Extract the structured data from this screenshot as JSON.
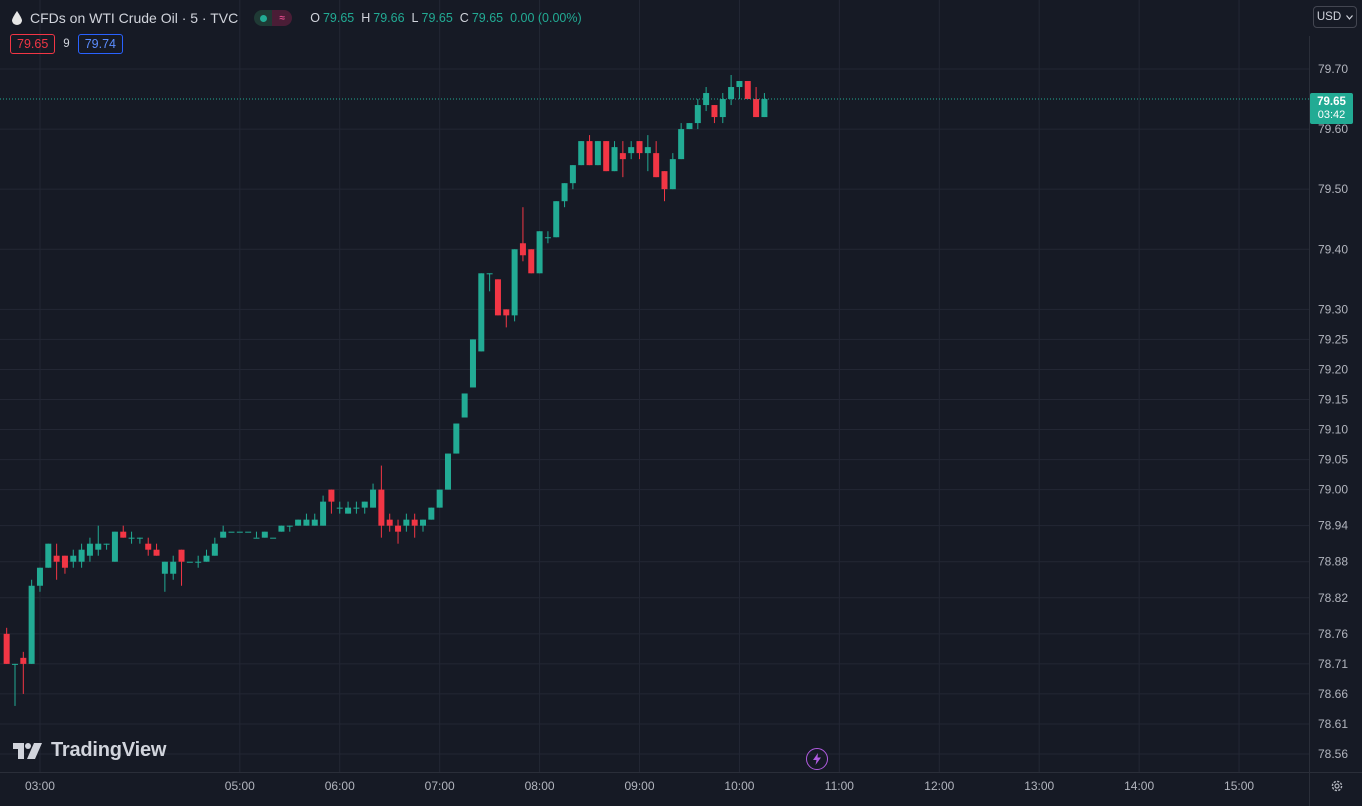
{
  "header": {
    "symbol_title": "CFDs on WTI Crude Oil · 5 · TVC",
    "ohlc": [
      {
        "key": "O",
        "value": "79.65"
      },
      {
        "key": "H",
        "value": "79.66"
      },
      {
        "key": "L",
        "value": "79.65"
      },
      {
        "key": "C",
        "value": "79.65"
      }
    ],
    "change": "0.00 (0.00%)",
    "status_badge_glyph": "≈"
  },
  "bid_ask": {
    "bid": "79.65",
    "spread": "9",
    "ask": "79.74"
  },
  "currency": {
    "label": "USD"
  },
  "price_tag": {
    "price": "79.65",
    "countdown": "03:42"
  },
  "logo": {
    "text": "TradingView"
  },
  "icons": {
    "symbol": "oil-drop-icon",
    "lightning": "lightning-icon",
    "settings": "gear-icon",
    "currency_chevron": "chevron-down-icon"
  },
  "colors": {
    "background": "#161a25",
    "up": "#22ab94",
    "down": "#f23645",
    "grid": "#232734",
    "text": "#b2b5be",
    "ask": "#2962ff"
  },
  "chart_data": {
    "type": "candlestick",
    "symbol": "CFDs on WTI Crude Oil",
    "interval": "5",
    "y_ticks": [
      "79.70",
      "79.60",
      "79.50",
      "79.40",
      "79.30",
      "79.25",
      "79.20",
      "79.15",
      "79.10",
      "79.05",
      "79.00",
      "78.94",
      "78.88",
      "78.82",
      "78.76",
      "78.71",
      "78.66",
      "78.61",
      "78.56"
    ],
    "y_range": [
      78.52,
      79.77
    ],
    "x_ticks": [
      "03:00",
      "05:00",
      "06:00",
      "07:00",
      "08:00",
      "09:00",
      "10:00",
      "11:00",
      "12:00",
      "13:00",
      "14:00",
      "15:00"
    ],
    "x_range": [
      "02:36",
      "15:42"
    ],
    "last_price": 79.65,
    "grid": true,
    "candles": [
      {
        "t": "02:40",
        "o": 78.76,
        "h": 78.77,
        "l": 78.71,
        "c": 78.71
      },
      {
        "t": "02:45",
        "o": 78.71,
        "h": 78.71,
        "l": 78.64,
        "c": 78.71
      },
      {
        "t": "02:50",
        "o": 78.72,
        "h": 78.73,
        "l": 78.66,
        "c": 78.71
      },
      {
        "t": "02:55",
        "o": 78.71,
        "h": 78.85,
        "l": 78.71,
        "c": 78.84
      },
      {
        "t": "03:00",
        "o": 78.84,
        "h": 78.87,
        "l": 78.83,
        "c": 78.87
      },
      {
        "t": "03:05",
        "o": 78.87,
        "h": 78.91,
        "l": 78.87,
        "c": 78.91
      },
      {
        "t": "03:10",
        "o": 78.89,
        "h": 78.91,
        "l": 78.85,
        "c": 78.88
      },
      {
        "t": "03:15",
        "o": 78.89,
        "h": 78.89,
        "l": 78.86,
        "c": 78.87
      },
      {
        "t": "03:20",
        "o": 78.88,
        "h": 78.9,
        "l": 78.87,
        "c": 78.89
      },
      {
        "t": "03:25",
        "o": 78.88,
        "h": 78.91,
        "l": 78.87,
        "c": 78.9
      },
      {
        "t": "03:30",
        "o": 78.89,
        "h": 78.92,
        "l": 78.88,
        "c": 78.91
      },
      {
        "t": "03:35",
        "o": 78.9,
        "h": 78.94,
        "l": 78.89,
        "c": 78.91
      },
      {
        "t": "03:40",
        "o": 78.91,
        "h": 78.91,
        "l": 78.9,
        "c": 78.91
      },
      {
        "t": "03:45",
        "o": 78.88,
        "h": 78.93,
        "l": 78.88,
        "c": 78.93
      },
      {
        "t": "03:50",
        "o": 78.93,
        "h": 78.94,
        "l": 78.92,
        "c": 78.92
      },
      {
        "t": "03:55",
        "o": 78.92,
        "h": 78.93,
        "l": 78.91,
        "c": 78.92
      },
      {
        "t": "04:00",
        "o": 78.92,
        "h": 78.92,
        "l": 78.91,
        "c": 78.92
      },
      {
        "t": "04:05",
        "o": 78.91,
        "h": 78.92,
        "l": 78.89,
        "c": 78.9
      },
      {
        "t": "04:10",
        "o": 78.9,
        "h": 78.91,
        "l": 78.89,
        "c": 78.89
      },
      {
        "t": "04:15",
        "o": 78.86,
        "h": 78.88,
        "l": 78.83,
        "c": 78.88
      },
      {
        "t": "04:20",
        "o": 78.86,
        "h": 78.89,
        "l": 78.85,
        "c": 78.88
      },
      {
        "t": "04:25",
        "o": 78.9,
        "h": 78.9,
        "l": 78.84,
        "c": 78.88
      },
      {
        "t": "04:30",
        "o": 78.88,
        "h": 78.88,
        "l": 78.88,
        "c": 78.88
      },
      {
        "t": "04:35",
        "o": 78.88,
        "h": 78.89,
        "l": 78.87,
        "c": 78.88
      },
      {
        "t": "04:40",
        "o": 78.88,
        "h": 78.9,
        "l": 78.88,
        "c": 78.89
      },
      {
        "t": "04:45",
        "o": 78.89,
        "h": 78.92,
        "l": 78.89,
        "c": 78.91
      },
      {
        "t": "04:50",
        "o": 78.92,
        "h": 78.94,
        "l": 78.92,
        "c": 78.93
      },
      {
        "t": "04:55",
        "o": 78.93,
        "h": 78.93,
        "l": 78.93,
        "c": 78.93
      },
      {
        "t": "05:00",
        "o": 78.93,
        "h": 78.93,
        "l": 78.93,
        "c": 78.93
      },
      {
        "t": "05:05",
        "o": 78.93,
        "h": 78.93,
        "l": 78.93,
        "c": 78.93
      },
      {
        "t": "05:10",
        "o": 78.92,
        "h": 78.93,
        "l": 78.92,
        "c": 78.92
      },
      {
        "t": "05:15",
        "o": 78.92,
        "h": 78.93,
        "l": 78.92,
        "c": 78.93
      },
      {
        "t": "05:20",
        "o": 78.92,
        "h": 78.92,
        "l": 78.92,
        "c": 78.92
      },
      {
        "t": "05:25",
        "o": 78.93,
        "h": 78.94,
        "l": 78.93,
        "c": 78.94
      },
      {
        "t": "05:30",
        "o": 78.94,
        "h": 78.94,
        "l": 78.93,
        "c": 78.94
      },
      {
        "t": "05:35",
        "o": 78.94,
        "h": 78.95,
        "l": 78.94,
        "c": 78.95
      },
      {
        "t": "05:40",
        "o": 78.94,
        "h": 78.96,
        "l": 78.94,
        "c": 78.95
      },
      {
        "t": "05:45",
        "o": 78.94,
        "h": 78.96,
        "l": 78.94,
        "c": 78.95
      },
      {
        "t": "05:50",
        "o": 78.94,
        "h": 78.99,
        "l": 78.94,
        "c": 78.98
      },
      {
        "t": "05:55",
        "o": 79.0,
        "h": 79.0,
        "l": 78.96,
        "c": 78.98
      },
      {
        "t": "06:00",
        "o": 78.97,
        "h": 78.98,
        "l": 78.96,
        "c": 78.97
      },
      {
        "t": "06:05",
        "o": 78.96,
        "h": 78.98,
        "l": 78.96,
        "c": 78.97
      },
      {
        "t": "06:10",
        "o": 78.97,
        "h": 78.98,
        "l": 78.96,
        "c": 78.97
      },
      {
        "t": "06:15",
        "o": 78.97,
        "h": 78.98,
        "l": 78.96,
        "c": 78.98
      },
      {
        "t": "06:20",
        "o": 78.97,
        "h": 79.01,
        "l": 78.97,
        "c": 79.0
      },
      {
        "t": "06:25",
        "o": 79.0,
        "h": 79.04,
        "l": 78.92,
        "c": 78.94
      },
      {
        "t": "06:30",
        "o": 78.95,
        "h": 78.96,
        "l": 78.93,
        "c": 78.94
      },
      {
        "t": "06:35",
        "o": 78.94,
        "h": 78.95,
        "l": 78.91,
        "c": 78.93
      },
      {
        "t": "06:40",
        "o": 78.94,
        "h": 78.96,
        "l": 78.93,
        "c": 78.95
      },
      {
        "t": "06:45",
        "o": 78.95,
        "h": 78.96,
        "l": 78.92,
        "c": 78.94
      },
      {
        "t": "06:50",
        "o": 78.94,
        "h": 78.95,
        "l": 78.93,
        "c": 78.95
      },
      {
        "t": "06:55",
        "o": 78.95,
        "h": 78.97,
        "l": 78.95,
        "c": 78.97
      },
      {
        "t": "07:00",
        "o": 78.97,
        "h": 79.0,
        "l": 78.97,
        "c": 79.0
      },
      {
        "t": "07:05",
        "o": 79.0,
        "h": 79.06,
        "l": 79.0,
        "c": 79.06
      },
      {
        "t": "07:10",
        "o": 79.06,
        "h": 79.11,
        "l": 79.06,
        "c": 79.11
      },
      {
        "t": "07:15",
        "o": 79.12,
        "h": 79.16,
        "l": 79.12,
        "c": 79.16
      },
      {
        "t": "07:20",
        "o": 79.17,
        "h": 79.25,
        "l": 79.17,
        "c": 79.25
      },
      {
        "t": "07:25",
        "o": 79.23,
        "h": 79.36,
        "l": 79.23,
        "c": 79.36
      },
      {
        "t": "07:30",
        "o": 79.36,
        "h": 79.36,
        "l": 79.33,
        "c": 79.36
      },
      {
        "t": "07:35",
        "o": 79.35,
        "h": 79.35,
        "l": 79.29,
        "c": 79.29
      },
      {
        "t": "07:40",
        "o": 79.3,
        "h": 79.3,
        "l": 79.27,
        "c": 79.29
      },
      {
        "t": "07:45",
        "o": 79.29,
        "h": 79.4,
        "l": 79.28,
        "c": 79.4
      },
      {
        "t": "07:50",
        "o": 79.41,
        "h": 79.47,
        "l": 79.38,
        "c": 79.39
      },
      {
        "t": "07:55",
        "o": 79.4,
        "h": 79.4,
        "l": 79.36,
        "c": 79.36
      },
      {
        "t": "08:00",
        "o": 79.36,
        "h": 79.43,
        "l": 79.36,
        "c": 79.43
      },
      {
        "t": "08:05",
        "o": 79.42,
        "h": 79.43,
        "l": 79.41,
        "c": 79.42
      },
      {
        "t": "08:10",
        "o": 79.42,
        "h": 79.48,
        "l": 79.42,
        "c": 79.48
      },
      {
        "t": "08:15",
        "o": 79.48,
        "h": 79.51,
        "l": 79.47,
        "c": 79.51
      },
      {
        "t": "08:20",
        "o": 79.51,
        "h": 79.54,
        "l": 79.5,
        "c": 79.54
      },
      {
        "t": "08:25",
        "o": 79.54,
        "h": 79.58,
        "l": 79.54,
        "c": 79.58
      },
      {
        "t": "08:30",
        "o": 79.58,
        "h": 79.59,
        "l": 79.54,
        "c": 79.54
      },
      {
        "t": "08:35",
        "o": 79.54,
        "h": 79.58,
        "l": 79.54,
        "c": 79.58
      },
      {
        "t": "08:40",
        "o": 79.58,
        "h": 79.58,
        "l": 79.53,
        "c": 79.53
      },
      {
        "t": "08:45",
        "o": 79.53,
        "h": 79.58,
        "l": 79.53,
        "c": 79.57
      },
      {
        "t": "08:50",
        "o": 79.56,
        "h": 79.58,
        "l": 79.52,
        "c": 79.55
      },
      {
        "t": "08:55",
        "o": 79.56,
        "h": 79.58,
        "l": 79.55,
        "c": 79.57
      },
      {
        "t": "09:00",
        "o": 79.58,
        "h": 79.58,
        "l": 79.55,
        "c": 79.56
      },
      {
        "t": "09:05",
        "o": 79.56,
        "h": 79.59,
        "l": 79.53,
        "c": 79.57
      },
      {
        "t": "09:10",
        "o": 79.56,
        "h": 79.58,
        "l": 79.52,
        "c": 79.52
      },
      {
        "t": "09:15",
        "o": 79.53,
        "h": 79.53,
        "l": 79.48,
        "c": 79.5
      },
      {
        "t": "09:20",
        "o": 79.5,
        "h": 79.56,
        "l": 79.5,
        "c": 79.55
      },
      {
        "t": "09:25",
        "o": 79.55,
        "h": 79.61,
        "l": 79.55,
        "c": 79.6
      },
      {
        "t": "09:30",
        "o": 79.6,
        "h": 79.61,
        "l": 79.6,
        "c": 79.61
      },
      {
        "t": "09:35",
        "o": 79.61,
        "h": 79.65,
        "l": 79.6,
        "c": 79.64
      },
      {
        "t": "09:40",
        "o": 79.64,
        "h": 79.67,
        "l": 79.63,
        "c": 79.66
      },
      {
        "t": "09:45",
        "o": 79.64,
        "h": 79.64,
        "l": 79.61,
        "c": 79.62
      },
      {
        "t": "09:50",
        "o": 79.62,
        "h": 79.66,
        "l": 79.61,
        "c": 79.65
      },
      {
        "t": "09:55",
        "o": 79.65,
        "h": 79.69,
        "l": 79.64,
        "c": 79.67
      },
      {
        "t": "10:00",
        "o": 79.67,
        "h": 79.68,
        "l": 79.65,
        "c": 79.68
      },
      {
        "t": "10:05",
        "o": 79.68,
        "h": 79.68,
        "l": 79.66,
        "c": 79.65
      },
      {
        "t": "10:10",
        "o": 79.65,
        "h": 79.67,
        "l": 79.62,
        "c": 79.62
      },
      {
        "t": "10:15",
        "o": 79.62,
        "h": 79.66,
        "l": 79.62,
        "c": 79.65
      }
    ]
  }
}
